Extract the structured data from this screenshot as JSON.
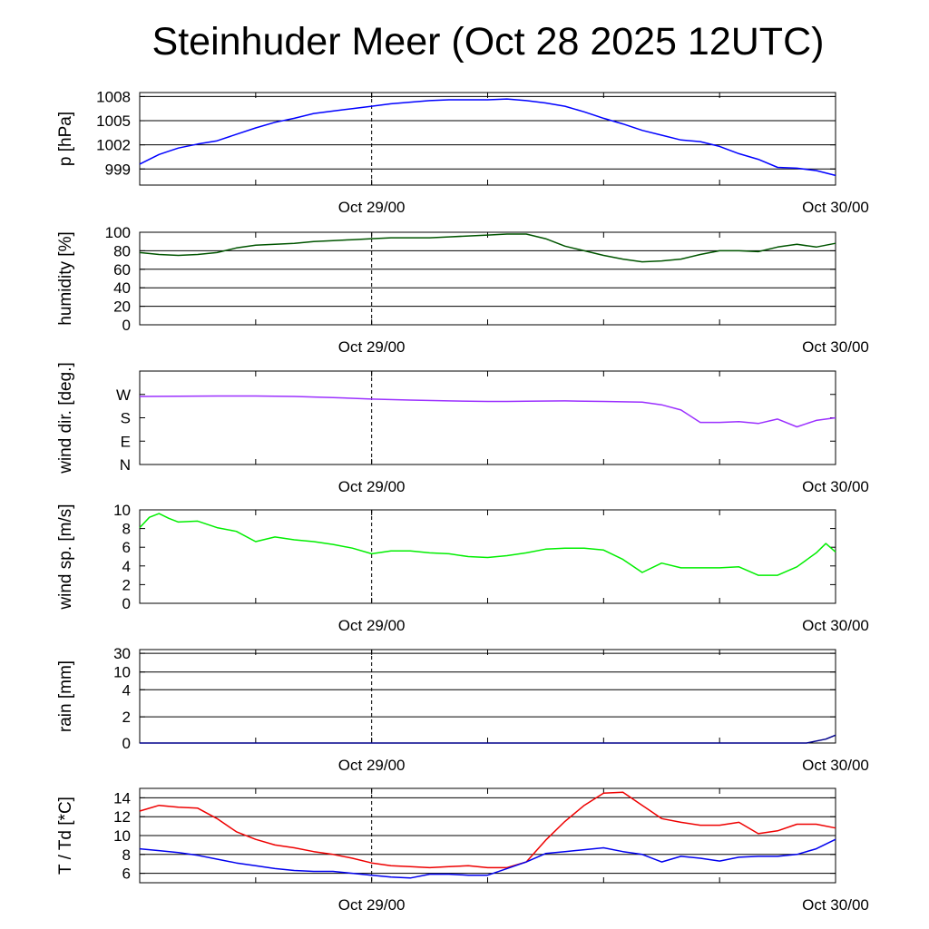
{
  "title": "Steinhuder Meer (Oct 28 2025 12UTC)",
  "chart_data": [
    {
      "id": "pressure",
      "type": "line",
      "ylabel": "p [hPa]",
      "ylim": [
        997,
        1008.5
      ],
      "yticks": [
        999,
        1002,
        1005,
        1008
      ],
      "ytick_labels": [
        "999",
        "1002",
        "1005",
        "1008"
      ],
      "xticks": [
        12,
        36
      ],
      "xtick_labels": [
        "Oct 29/00",
        "Oct 30/00"
      ],
      "xlim": [
        0,
        36
      ],
      "grid": true,
      "series": [
        {
          "color": "#0000ff",
          "x": [
            0,
            0.5,
            1,
            1.5,
            2,
            3,
            4,
            5,
            6,
            7,
            8,
            9,
            10,
            11,
            12,
            13,
            14,
            15,
            16,
            17,
            18,
            19,
            20,
            21,
            22,
            23,
            24,
            25,
            26,
            27,
            28,
            29,
            30,
            31,
            32,
            33,
            34,
            35,
            36
          ],
          "y": [
            999.6,
            1000.2,
            1000.8,
            1001.2,
            1001.6,
            1002.1,
            1002.5,
            1003.3,
            1004.1,
            1004.8,
            1005.3,
            1005.9,
            1006.2,
            1006.5,
            1006.8,
            1007.1,
            1007.3,
            1007.5,
            1007.6,
            1007.6,
            1007.6,
            1007.7,
            1007.5,
            1007.2,
            1006.8,
            1006.1,
            1005.3,
            1004.6,
            1003.8,
            1003.2,
            1002.6,
            1002.4,
            1001.8,
            1000.9,
            1000.2,
            999.2,
            999.1,
            998.8,
            998.2
          ]
        }
      ]
    },
    {
      "id": "humidity",
      "type": "line",
      "ylabel": "humidity [%]",
      "ylim": [
        0,
        100
      ],
      "yticks": [
        0,
        20,
        40,
        60,
        80,
        100
      ],
      "ytick_labels": [
        "0",
        "20",
        "40",
        "60",
        "80",
        "100"
      ],
      "xticks": [
        12,
        36
      ],
      "xtick_labels": [
        "Oct 29/00",
        "Oct 30/00"
      ],
      "xlim": [
        0,
        36
      ],
      "grid": true,
      "series": [
        {
          "color": "#005500",
          "x": [
            0,
            1,
            2,
            3,
            4,
            5,
            6,
            7,
            8,
            9,
            10,
            11,
            12,
            13,
            14,
            15,
            16,
            17,
            18,
            19,
            20,
            21,
            22,
            23,
            24,
            25,
            26,
            27,
            28,
            29,
            30,
            31,
            32,
            33,
            34,
            35,
            36
          ],
          "y": [
            78,
            76,
            75,
            76,
            78,
            83,
            86,
            87,
            88,
            90,
            91,
            92,
            93,
            94,
            94,
            94,
            95,
            96,
            97,
            98,
            98,
            93,
            85,
            80,
            75,
            71,
            68,
            69,
            71,
            76,
            80,
            80,
            79,
            84,
            87,
            84,
            88
          ]
        }
      ]
    },
    {
      "id": "wind_dir",
      "type": "line",
      "ylabel": "wind dir. [deg.]",
      "ylim": [
        0,
        360
      ],
      "yticks": [
        0,
        90,
        180,
        270
      ],
      "ytick_labels": [
        "N",
        "E",
        "S",
        "W"
      ],
      "xticks": [
        12,
        36
      ],
      "xtick_labels": [
        "Oct 29/00",
        "Oct 30/00"
      ],
      "xlim": [
        0,
        36
      ],
      "grid": false,
      "series": [
        {
          "color": "#9b30ff",
          "x": [
            0,
            2,
            4,
            6,
            8,
            10,
            12,
            14,
            16,
            18,
            19,
            20,
            22,
            24,
            26,
            27,
            28,
            29,
            30,
            31,
            32,
            33,
            34,
            35,
            36
          ],
          "y": [
            262,
            263,
            264,
            264,
            262,
            258,
            252,
            248,
            245,
            243,
            243,
            244,
            245,
            243,
            240,
            230,
            210,
            162,
            162,
            165,
            158,
            175,
            145,
            170,
            180
          ]
        }
      ]
    },
    {
      "id": "wind_speed",
      "type": "line",
      "ylabel": "wind sp. [m/s]",
      "ylim": [
        0,
        10
      ],
      "yticks": [
        0,
        2,
        4,
        6,
        8,
        10
      ],
      "ytick_labels": [
        "0",
        "2",
        "4",
        "6",
        "8",
        "10"
      ],
      "xticks": [
        12,
        36
      ],
      "xtick_labels": [
        "Oct 29/00",
        "Oct 30/00"
      ],
      "xlim": [
        0,
        36
      ],
      "grid": false,
      "series": [
        {
          "color": "#00ee00",
          "x": [
            0,
            0.5,
            1,
            1.5,
            2,
            3,
            4,
            5,
            6,
            7,
            8,
            9,
            10,
            11,
            12,
            13,
            14,
            15,
            16,
            17,
            18,
            19,
            20,
            21,
            22,
            23,
            24,
            25,
            26,
            27,
            28,
            29,
            30,
            31,
            32,
            33,
            34,
            35,
            35.5,
            36
          ],
          "y": [
            8.1,
            9.2,
            9.6,
            9.1,
            8.7,
            8.8,
            8.1,
            7.7,
            6.6,
            7.1,
            6.8,
            6.6,
            6.3,
            5.9,
            5.3,
            5.6,
            5.6,
            5.4,
            5.3,
            5.0,
            4.9,
            5.1,
            5.4,
            5.8,
            5.9,
            5.9,
            5.7,
            4.7,
            3.3,
            4.3,
            3.8,
            3.8,
            3.8,
            3.9,
            3.0,
            3.0,
            3.9,
            5.4,
            6.4,
            5.5
          ]
        }
      ]
    },
    {
      "id": "rain",
      "type": "line",
      "ylabel": "rain [mm]",
      "ylim": [
        0,
        33
      ],
      "yticks": [
        0,
        2,
        4,
        10,
        30
      ],
      "ytick_labels": [
        "0",
        "2",
        "4",
        "10",
        "30"
      ],
      "xticks": [
        12,
        36
      ],
      "xtick_labels": [
        "Oct 29/00",
        "Oct 30/00"
      ],
      "xlim": [
        0,
        36
      ],
      "grid": true,
      "series": [
        {
          "color": "#00008b",
          "x": [
            0,
            33,
            34.5,
            35.5,
            36
          ],
          "y": [
            0,
            0,
            0,
            0.3,
            0.6
          ]
        }
      ]
    },
    {
      "id": "temperature",
      "type": "line",
      "ylabel": "T / Td [*C]",
      "ylim": [
        5,
        15
      ],
      "yticks": [
        6,
        8,
        10,
        12,
        14
      ],
      "ytick_labels": [
        "6",
        "8",
        "10",
        "12",
        "14"
      ],
      "xticks": [
        12,
        36
      ],
      "xtick_labels": [
        "Oct 29/00",
        "Oct 30/00"
      ],
      "xlim": [
        0,
        36
      ],
      "grid": true,
      "series": [
        {
          "color": "#ee0000",
          "x": [
            0,
            1,
            2,
            3,
            4,
            5,
            6,
            7,
            8,
            9,
            10,
            11,
            12,
            13,
            14,
            15,
            16,
            17,
            18,
            19,
            20,
            21,
            22,
            23,
            24,
            25,
            26,
            27,
            28,
            29,
            30,
            31,
            32,
            33,
            34,
            35,
            36
          ],
          "y": [
            12.6,
            13.2,
            13.0,
            12.9,
            11.8,
            10.4,
            9.6,
            9.0,
            8.7,
            8.3,
            8.0,
            7.6,
            7.1,
            6.8,
            6.7,
            6.6,
            6.7,
            6.8,
            6.6,
            6.6,
            7.2,
            9.5,
            11.5,
            13.2,
            14.5,
            14.6,
            13.2,
            11.8,
            11.4,
            11.1,
            11.1,
            11.4,
            10.2,
            10.5,
            11.2,
            11.2,
            10.8
          ]
        },
        {
          "color": "#0000ee",
          "x": [
            0,
            1,
            2,
            3,
            4,
            5,
            6,
            7,
            8,
            9,
            10,
            11,
            12,
            13,
            14,
            15,
            16,
            17,
            18,
            19,
            20,
            21,
            22,
            23,
            24,
            25,
            26,
            27,
            28,
            29,
            30,
            31,
            32,
            33,
            34,
            35,
            36
          ],
          "y": [
            8.6,
            8.4,
            8.2,
            7.9,
            7.5,
            7.1,
            6.8,
            6.5,
            6.3,
            6.2,
            6.2,
            6.0,
            5.8,
            5.6,
            5.5,
            5.9,
            5.9,
            5.8,
            5.8,
            6.5,
            7.2,
            8.1,
            8.3,
            8.5,
            8.7,
            8.3,
            8.0,
            7.2,
            7.8,
            7.6,
            7.3,
            7.7,
            7.8,
            7.8,
            8.0,
            8.6,
            9.6
          ]
        }
      ]
    }
  ]
}
